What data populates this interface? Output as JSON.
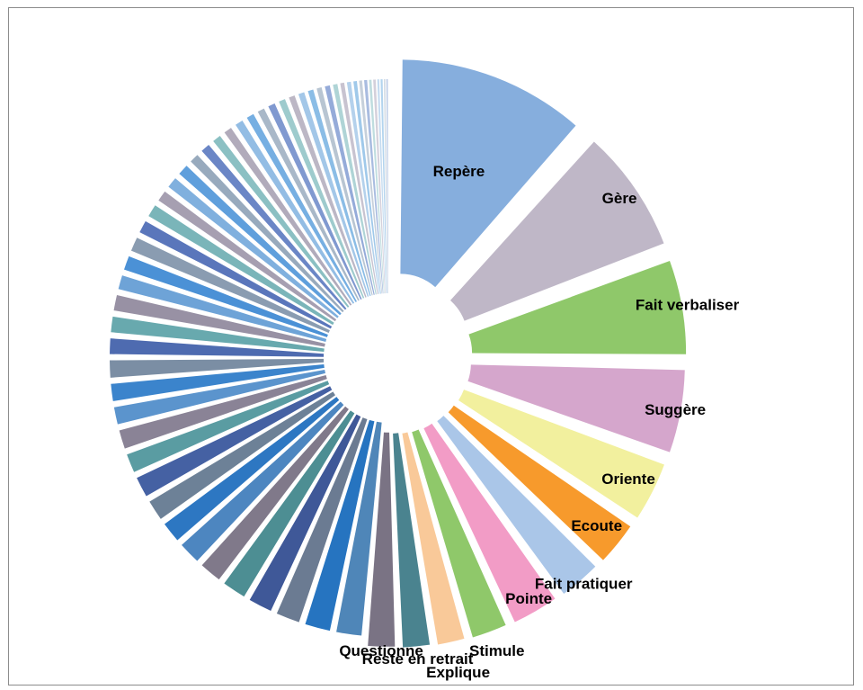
{
  "chart_data": {
    "type": "pie",
    "style": "exploded-pie",
    "legend": "none",
    "grid": false,
    "slices": [
      {
        "label": "Repère",
        "value": 12.0,
        "color": "#86aedd"
      },
      {
        "label": "Gère",
        "value": 8.0,
        "color": "#bfb7c7"
      },
      {
        "label": "Fait verbaliser",
        "value": 6.2,
        "color": "#8fc86a"
      },
      {
        "label": "Suggère",
        "value": 5.5,
        "color": "#d5a6cc"
      },
      {
        "label": "Oriente",
        "value": 4.0,
        "color": "#f2f09e"
      },
      {
        "label": "Ecoute",
        "value": 3.0,
        "color": "#f79a2c"
      },
      {
        "label": "Fait pratiquer",
        "value": 2.9,
        "color": "#aac6e8"
      },
      {
        "label": "Pointe",
        "value": 3.2,
        "color": "#f29cc6"
      },
      {
        "label": "Stimule",
        "value": 2.5,
        "color": "#8fc86a"
      },
      {
        "label": "Explique",
        "value": 2.0,
        "color": "#f9c999"
      },
      {
        "label": "Reste en retrait",
        "value": 2.0,
        "color": "#4a838f"
      },
      {
        "label": "Questionne",
        "value": 2.0,
        "color": "#7a7384"
      },
      {
        "label": "",
        "value": 1.9,
        "color": "#4f86b8"
      },
      {
        "label": "",
        "value": 1.9,
        "color": "#2674c0"
      },
      {
        "label": "",
        "value": 1.8,
        "color": "#6b7b92"
      },
      {
        "label": "",
        "value": 1.8,
        "color": "#3f5898"
      },
      {
        "label": "",
        "value": 1.8,
        "color": "#4d8e93"
      },
      {
        "label": "",
        "value": 1.7,
        "color": "#80798a"
      },
      {
        "label": "",
        "value": 1.7,
        "color": "#4d86c0"
      },
      {
        "label": "",
        "value": 1.6,
        "color": "#2d77c2"
      },
      {
        "label": "",
        "value": 1.6,
        "color": "#6d8197"
      },
      {
        "label": "",
        "value": 1.6,
        "color": "#4561a3"
      },
      {
        "label": "",
        "value": 1.5,
        "color": "#5a9ca2"
      },
      {
        "label": "",
        "value": 1.5,
        "color": "#8a8396"
      },
      {
        "label": "",
        "value": 1.4,
        "color": "#5b94cd"
      },
      {
        "label": "",
        "value": 1.4,
        "color": "#3b84cc"
      },
      {
        "label": "",
        "value": 1.4,
        "color": "#7b8ea4"
      },
      {
        "label": "",
        "value": 1.3,
        "color": "#4e6bb0"
      },
      {
        "label": "",
        "value": 1.3,
        "color": "#68a9ae"
      },
      {
        "label": "",
        "value": 1.3,
        "color": "#9891a4"
      },
      {
        "label": "",
        "value": 1.2,
        "color": "#6ea3d7"
      },
      {
        "label": "",
        "value": 1.2,
        "color": "#4b91d6"
      },
      {
        "label": "",
        "value": 1.2,
        "color": "#8a9cb1"
      },
      {
        "label": "",
        "value": 1.1,
        "color": "#5a76bb"
      },
      {
        "label": "",
        "value": 1.1,
        "color": "#7ab5b9"
      },
      {
        "label": "",
        "value": 1.0,
        "color": "#a69fb1"
      },
      {
        "label": "",
        "value": 1.0,
        "color": "#80b0de"
      },
      {
        "label": "",
        "value": 1.0,
        "color": "#5f9fdc"
      },
      {
        "label": "",
        "value": 0.9,
        "color": "#98aabd"
      },
      {
        "label": "",
        "value": 0.9,
        "color": "#6b86c6"
      },
      {
        "label": "",
        "value": 0.85,
        "color": "#8bc0c3"
      },
      {
        "label": "",
        "value": 0.8,
        "color": "#b1abbb"
      },
      {
        "label": "",
        "value": 0.8,
        "color": "#93bde4"
      },
      {
        "label": "",
        "value": 0.75,
        "color": "#76afe2"
      },
      {
        "label": "",
        "value": 0.7,
        "color": "#a9b8c8"
      },
      {
        "label": "",
        "value": 0.7,
        "color": "#8099d0"
      },
      {
        "label": "",
        "value": 0.65,
        "color": "#9ecbcd"
      },
      {
        "label": "",
        "value": 0.6,
        "color": "#bcb7c5"
      },
      {
        "label": "",
        "value": 0.6,
        "color": "#a3c7e8"
      },
      {
        "label": "",
        "value": 0.55,
        "color": "#8bbde6"
      },
      {
        "label": "",
        "value": 0.5,
        "color": "#b8c5d2"
      },
      {
        "label": "",
        "value": 0.5,
        "color": "#95abd9"
      },
      {
        "label": "",
        "value": 0.45,
        "color": "#afd4d6"
      },
      {
        "label": "",
        "value": 0.4,
        "color": "#c8c3d0"
      },
      {
        "label": "",
        "value": 0.4,
        "color": "#b4d1ec"
      },
      {
        "label": "",
        "value": 0.35,
        "color": "#a0c9ea"
      },
      {
        "label": "",
        "value": 0.3,
        "color": "#c6d0db"
      },
      {
        "label": "",
        "value": 0.3,
        "color": "#a9bce0"
      },
      {
        "label": "",
        "value": 0.25,
        "color": "#bfdddf"
      },
      {
        "label": "",
        "value": 0.25,
        "color": "#d4d0db"
      },
      {
        "label": "",
        "value": 0.2,
        "color": "#c4dbf0"
      },
      {
        "label": "",
        "value": 0.2,
        "color": "#b3d4ee"
      },
      {
        "label": "",
        "value": 0.15,
        "color": "#d3dbe3"
      },
      {
        "label": "",
        "value": 0.15,
        "color": "#bccbe6"
      }
    ]
  }
}
